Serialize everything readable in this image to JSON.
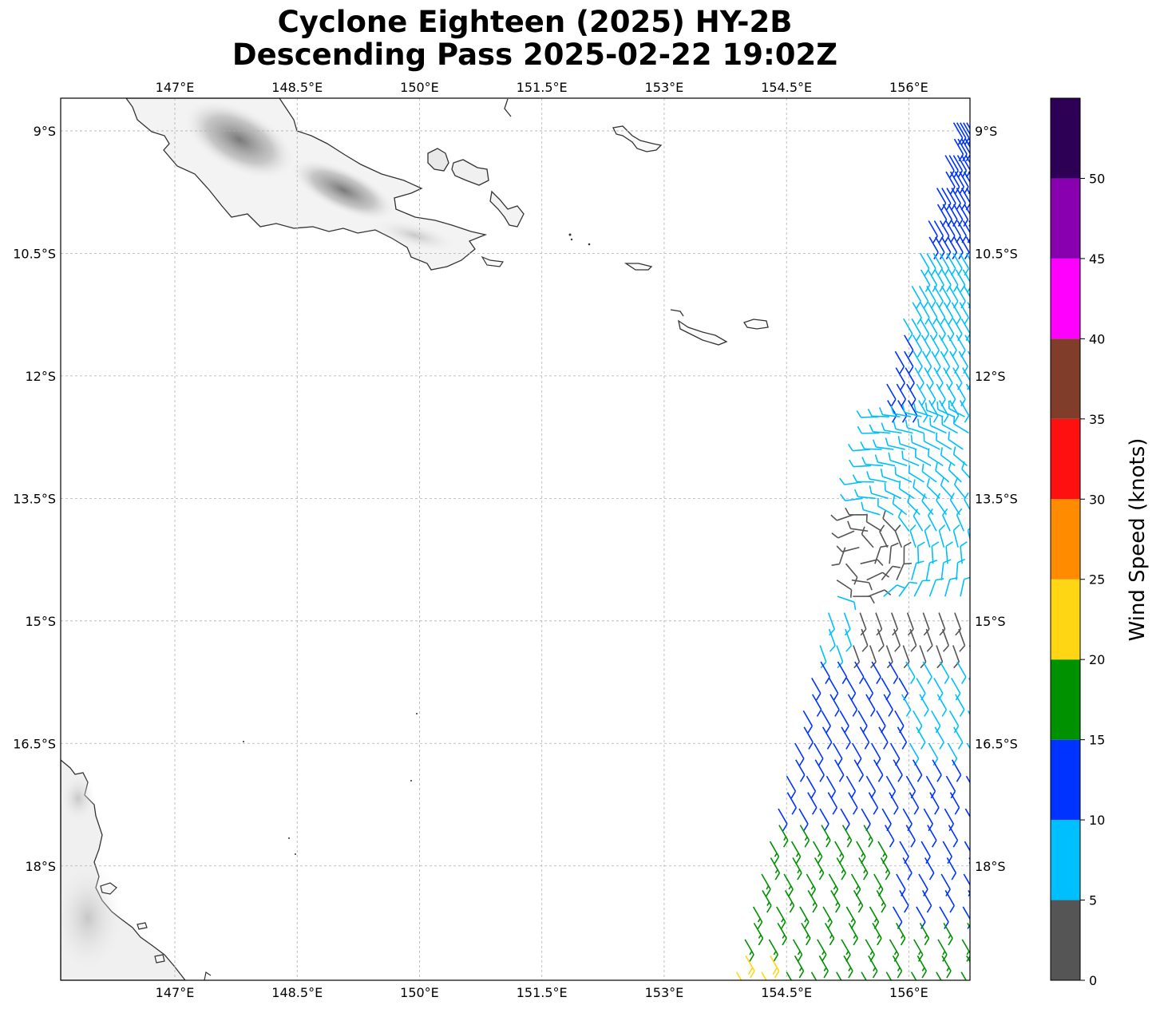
{
  "title": {
    "line1": "Cyclone Eighteen (2025) HY-2B",
    "line2": "Descending Pass 2025-02-22 19:02Z"
  },
  "map": {
    "lon_range": [
      145.6,
      156.75
    ],
    "lat_range": [
      -19.4,
      -8.6
    ],
    "gridlines": true,
    "lon_ticks": [
      {
        "value": 147,
        "label": "147°E"
      },
      {
        "value": 148.5,
        "label": "148.5°E"
      },
      {
        "value": 150,
        "label": "150°E"
      },
      {
        "value": 151.5,
        "label": "151.5°E"
      },
      {
        "value": 153,
        "label": "153°E"
      },
      {
        "value": 154.5,
        "label": "154.5°E"
      },
      {
        "value": 156,
        "label": "156°E"
      }
    ],
    "lat_ticks": [
      {
        "value": -9,
        "label": "9°S"
      },
      {
        "value": -10.5,
        "label": "10.5°S"
      },
      {
        "value": -12,
        "label": "12°S"
      },
      {
        "value": -13.5,
        "label": "13.5°S"
      },
      {
        "value": -15,
        "label": "15°S"
      },
      {
        "value": -16.5,
        "label": "16.5°S"
      },
      {
        "value": -18,
        "label": "18°S"
      }
    ],
    "calm_marker": "circle"
  },
  "colorbar": {
    "label": "Wind Speed (knots)",
    "ticks": [
      "0",
      "5",
      "10",
      "15",
      "20",
      "25",
      "30",
      "35",
      "40",
      "45",
      "50"
    ],
    "bins": [
      {
        "min": 0,
        "max": 5,
        "color": "#555555"
      },
      {
        "min": 5,
        "max": 10,
        "color": "#00BFFF"
      },
      {
        "min": 10,
        "max": 15,
        "color": "#0033FF"
      },
      {
        "min": 15,
        "max": 20,
        "color": "#009100"
      },
      {
        "min": 20,
        "max": 25,
        "color": "#FFD614"
      },
      {
        "min": 25,
        "max": 30,
        "color": "#FF8C00"
      },
      {
        "min": 30,
        "max": 35,
        "color": "#FF1010"
      },
      {
        "min": 35,
        "max": 40,
        "color": "#7F3D2A"
      },
      {
        "min": 40,
        "max": 45,
        "color": "#FF00FF"
      },
      {
        "min": 45,
        "max": 50,
        "color": "#8800B0"
      },
      {
        "min": 50,
        "max": 55,
        "color": "#2E0055"
      }
    ]
  }
}
